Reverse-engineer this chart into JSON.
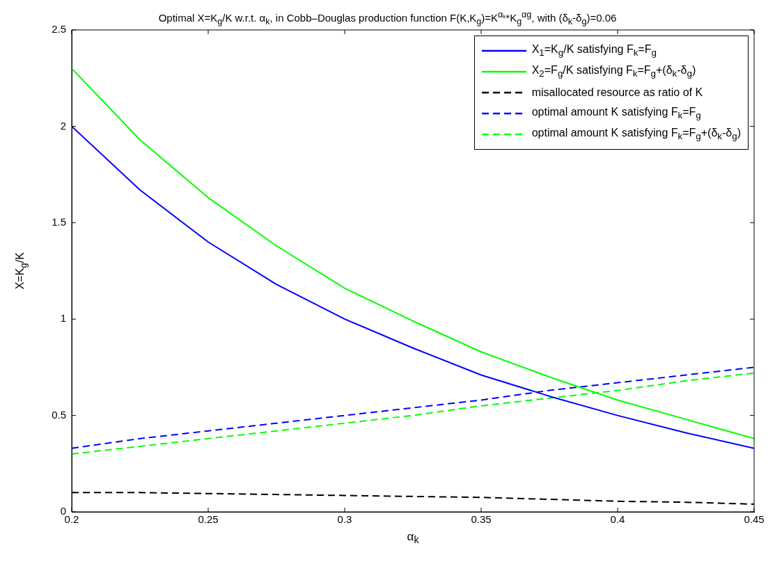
{
  "chart_data": {
    "type": "line",
    "title": "Optimal X=K$_{g}$/K w.r.t. α$_{k}$, in Cobb–Douglas production function F(K,K$_{g}$)=K$^{αₖ}$*K$_{g}$$^{αg}$, with (δ$_{k}$-δ$_{g}$)=0.06",
    "xlabel": "α$_{k}$",
    "ylabel": "X=K$_{g}$/K",
    "x": [
      0.2,
      0.225,
      0.25,
      0.275,
      0.3,
      0.325,
      0.35,
      0.375,
      0.4,
      0.425,
      0.45
    ],
    "series": [
      {
        "name": "X$_{1}$=K$_{g}$/K satisfying F$_{k}$=F$_{g}$",
        "color": "#0000ff",
        "line_style": "solid",
        "values": [
          2.0,
          1.67,
          1.4,
          1.18,
          1.0,
          0.85,
          0.71,
          0.6,
          0.5,
          0.41,
          0.33
        ]
      },
      {
        "name": "X$_{2}$=F$_{g}$/K satisfying F$_{k}$=F$_{g}$+(δ$_{k}$-δ$_{g}$)",
        "color": "#00ff00",
        "line_style": "solid",
        "values": [
          2.3,
          1.93,
          1.63,
          1.38,
          1.16,
          0.99,
          0.83,
          0.7,
          0.58,
          0.48,
          0.38
        ]
      },
      {
        "name": "misallocated resource as ratio of K",
        "color": "#000000",
        "line_style": "dashed",
        "values": [
          0.1,
          0.1,
          0.095,
          0.09,
          0.085,
          0.08,
          0.075,
          0.065,
          0.055,
          0.05,
          0.04
        ]
      },
      {
        "name": "optimal amount K satisfying F$_{k}$=F$_{g}$",
        "color": "#0000ff",
        "line_style": "dashed",
        "values": [
          0.33,
          0.38,
          0.42,
          0.46,
          0.5,
          0.54,
          0.58,
          0.63,
          0.67,
          0.71,
          0.75
        ]
      },
      {
        "name": "optimal amount K satisfying F$_{k}$=F$_{g}$+(δ$_{k}$-δ$_{g}$)",
        "color": "#00ff00",
        "line_style": "dashed",
        "values": [
          0.3,
          0.34,
          0.38,
          0.42,
          0.46,
          0.5,
          0.55,
          0.59,
          0.63,
          0.68,
          0.72
        ]
      }
    ],
    "xlim": [
      0.2,
      0.45
    ],
    "xticks": [
      0.2,
      0.25,
      0.3,
      0.35,
      0.4,
      0.45
    ],
    "ylim": [
      0,
      2.5
    ],
    "yticks": [
      0,
      0.5,
      1,
      1.5,
      2,
      2.5
    ],
    "grid": false,
    "legend": "top right",
    "marker": "none"
  }
}
